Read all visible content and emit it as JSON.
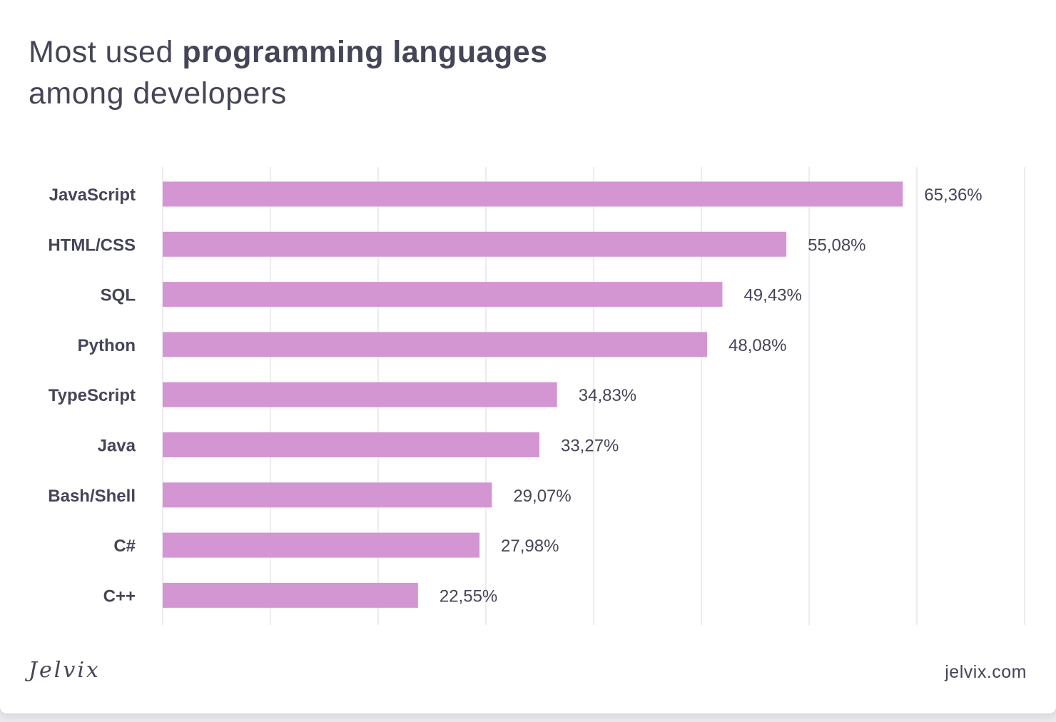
{
  "header": {
    "title_prefix": "Most used ",
    "title_bold": "programming languages",
    "title_line2": "among developers"
  },
  "footer": {
    "brand": "Jelvix",
    "site": "jelvix.com"
  },
  "colors": {
    "bar": "#d396d3",
    "text": "#454558",
    "grid": "#e6e6ea"
  },
  "chart_data": {
    "type": "bar",
    "orientation": "horizontal",
    "categories": [
      "JavaScript",
      "HTML/CSS",
      "SQL",
      "Python",
      "TypeScript",
      "Java",
      "Bash/Shell",
      "C#",
      "C++"
    ],
    "values": [
      65.36,
      55.08,
      49.43,
      48.08,
      34.83,
      33.27,
      29.07,
      27.98,
      22.55
    ],
    "value_labels": [
      "65,36%",
      "55,08%",
      "49,43%",
      "48,08%",
      "34,83%",
      "33,27%",
      "29,07%",
      "27,98%",
      "22,55%"
    ],
    "unit": "%",
    "grid": true,
    "legend": "none"
  }
}
